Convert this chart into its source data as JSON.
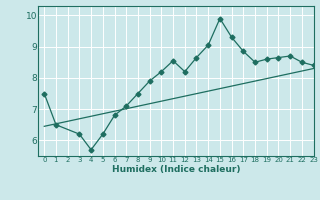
{
  "title": "",
  "xlabel": "Humidex (Indice chaleur)",
  "ylabel": "",
  "bg_color": "#cce8ea",
  "line_color": "#1e6e60",
  "grid_color": "#ffffff",
  "xlim": [
    -0.5,
    23
  ],
  "ylim": [
    5.5,
    10.3
  ],
  "yticks": [
    6,
    7,
    8,
    9,
    10
  ],
  "xticks": [
    0,
    1,
    2,
    3,
    4,
    5,
    6,
    7,
    8,
    9,
    10,
    11,
    12,
    13,
    14,
    15,
    16,
    17,
    18,
    19,
    20,
    21,
    22,
    23
  ],
  "data_x": [
    0,
    1,
    3,
    4,
    5,
    6,
    7,
    8,
    9,
    10,
    11,
    12,
    13,
    14,
    15,
    16,
    17,
    18,
    19,
    20,
    21,
    22,
    23
  ],
  "data_y": [
    7.5,
    6.5,
    6.2,
    5.7,
    6.2,
    6.8,
    7.1,
    7.5,
    7.9,
    8.2,
    8.55,
    8.2,
    8.65,
    9.05,
    9.9,
    9.3,
    8.85,
    8.5,
    8.6,
    8.65,
    8.7,
    8.5,
    8.4
  ],
  "trend_x": [
    0,
    23
  ],
  "trend_y": [
    6.45,
    8.3
  ],
  "marker": "D",
  "marker_size": 2.5,
  "line_width": 0.9
}
